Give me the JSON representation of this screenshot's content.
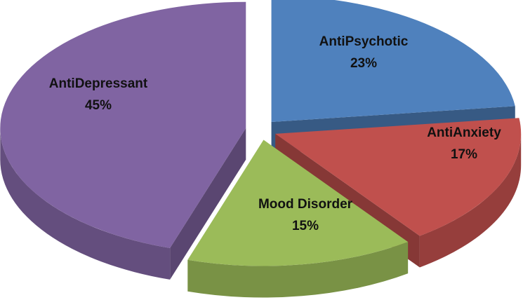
{
  "chart_data": {
    "type": "pie",
    "categories": [
      "AntiPsychotic",
      "AntiAnxiety",
      "Mood Disorder",
      "AntiDepressant"
    ],
    "values": [
      23,
      17,
      15,
      45
    ],
    "value_labels": [
      "23%",
      "17%",
      "15%",
      "45%"
    ],
    "colors": [
      "#4f81bd",
      "#c0504d",
      "#9bbb59",
      "#8064a2"
    ]
  }
}
